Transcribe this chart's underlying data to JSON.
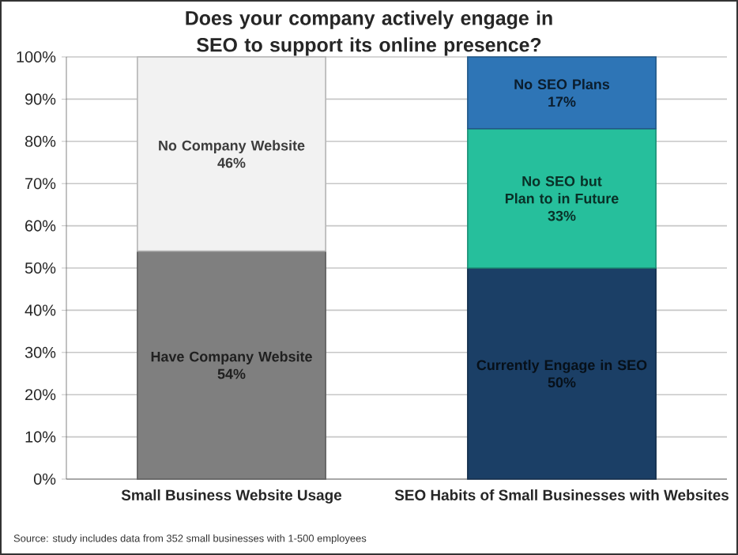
{
  "chart_data": {
    "type": "bar",
    "stacked": true,
    "title": "Does your company actively engage in SEO to support its online presence?",
    "categories": [
      "Small Business Website Usage",
      "SEO Habits of Small Businesses with Websites"
    ],
    "series": [
      {
        "name": "Have Company Website",
        "color": "#7f7f7f",
        "values": [
          54,
          null
        ],
        "value_labels": [
          "54%",
          null
        ]
      },
      {
        "name": "Currently Engage in SEO",
        "color": "#1b3f66",
        "values": [
          null,
          50
        ],
        "value_labels": [
          null,
          "50%"
        ]
      },
      {
        "name": "No Company Website",
        "color": "#f2f2f2",
        "values": [
          46,
          null
        ],
        "value_labels": [
          "46%",
          null
        ]
      },
      {
        "name": "No SEO but Plan to in Future",
        "color": "#26bf9c",
        "values": [
          null,
          33
        ],
        "value_labels": [
          null,
          "33%"
        ]
      },
      {
        "name": "No SEO Plans",
        "color": "#2e75b6",
        "values": [
          null,
          17
        ],
        "value_labels": [
          null,
          "17%"
        ]
      }
    ],
    "ylim": [
      0,
      100
    ],
    "yticks": [
      {
        "value": 0,
        "label": "0%"
      },
      {
        "value": 10,
        "label": "10%"
      },
      {
        "value": 20,
        "label": "20%"
      },
      {
        "value": 30,
        "label": "30%"
      },
      {
        "value": 40,
        "label": "40%"
      },
      {
        "value": 50,
        "label": "50%"
      },
      {
        "value": 60,
        "label": "60%"
      },
      {
        "value": 70,
        "label": "70%"
      },
      {
        "value": 80,
        "label": "80%"
      },
      {
        "value": 90,
        "label": "90%"
      },
      {
        "value": 100,
        "label": "100%"
      }
    ],
    "grid": "y",
    "annotations": [
      "Source: study includes data from 352 small businesses with 1-500 employees"
    ]
  }
}
